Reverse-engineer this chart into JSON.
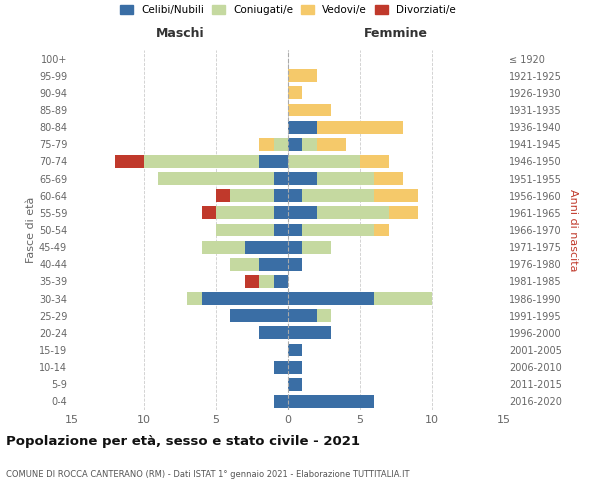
{
  "age_groups": [
    "0-4",
    "5-9",
    "10-14",
    "15-19",
    "20-24",
    "25-29",
    "30-34",
    "35-39",
    "40-44",
    "45-49",
    "50-54",
    "55-59",
    "60-64",
    "65-69",
    "70-74",
    "75-79",
    "80-84",
    "85-89",
    "90-94",
    "95-99",
    "100+"
  ],
  "birth_years": [
    "2016-2020",
    "2011-2015",
    "2006-2010",
    "2001-2005",
    "1996-2000",
    "1991-1995",
    "1986-1990",
    "1981-1985",
    "1976-1980",
    "1971-1975",
    "1966-1970",
    "1961-1965",
    "1956-1960",
    "1951-1955",
    "1946-1950",
    "1941-1945",
    "1936-1940",
    "1931-1935",
    "1926-1930",
    "1921-1925",
    "≤ 1920"
  ],
  "colors": {
    "celibi": "#3A6EA5",
    "coniugati": "#C5D9A0",
    "vedovi": "#F5C96A",
    "divorziati": "#C0392B"
  },
  "maschi": {
    "celibi": [
      1,
      0,
      1,
      0,
      2,
      4,
      6,
      1,
      2,
      3,
      1,
      1,
      1,
      1,
      2,
      0,
      0,
      0,
      0,
      0,
      0
    ],
    "coniugati": [
      0,
      0,
      0,
      0,
      0,
      0,
      1,
      1,
      2,
      3,
      4,
      4,
      3,
      8,
      8,
      1,
      0,
      0,
      0,
      0,
      0
    ],
    "vedovi": [
      0,
      0,
      0,
      0,
      0,
      0,
      0,
      0,
      0,
      0,
      0,
      0,
      0,
      0,
      0,
      1,
      0,
      0,
      0,
      0,
      0
    ],
    "divorziati": [
      0,
      0,
      0,
      0,
      0,
      0,
      0,
      1,
      0,
      0,
      0,
      1,
      1,
      0,
      2,
      0,
      0,
      0,
      0,
      0,
      0
    ]
  },
  "femmine": {
    "celibi": [
      6,
      1,
      1,
      1,
      3,
      2,
      6,
      0,
      1,
      1,
      1,
      2,
      1,
      2,
      0,
      1,
      2,
      0,
      0,
      0,
      0
    ],
    "coniugati": [
      0,
      0,
      0,
      0,
      0,
      1,
      4,
      0,
      0,
      2,
      5,
      5,
      5,
      4,
      5,
      1,
      0,
      0,
      0,
      0,
      0
    ],
    "vedovi": [
      0,
      0,
      0,
      0,
      0,
      0,
      0,
      0,
      0,
      0,
      1,
      2,
      3,
      2,
      2,
      2,
      6,
      3,
      1,
      2,
      0
    ],
    "divorziati": [
      0,
      0,
      0,
      0,
      0,
      0,
      0,
      0,
      0,
      0,
      0,
      0,
      0,
      0,
      0,
      0,
      0,
      0,
      0,
      0,
      0
    ]
  },
  "title": "Popolazione per età, sesso e stato civile - 2021",
  "subtitle": "COMUNE DI ROCCA CANTERANO (RM) - Dati ISTAT 1° gennaio 2021 - Elaborazione TUTTITALIA.IT",
  "xlabel_left": "Maschi",
  "xlabel_right": "Femmine",
  "ylabel_left": "Fasce di età",
  "ylabel_right": "Anni di nascita",
  "xlim": 15,
  "legend_labels": [
    "Celibi/Nubili",
    "Coniugati/e",
    "Vedovi/e",
    "Divorziati/e"
  ],
  "background_color": "#ffffff",
  "grid_color": "#cccccc"
}
